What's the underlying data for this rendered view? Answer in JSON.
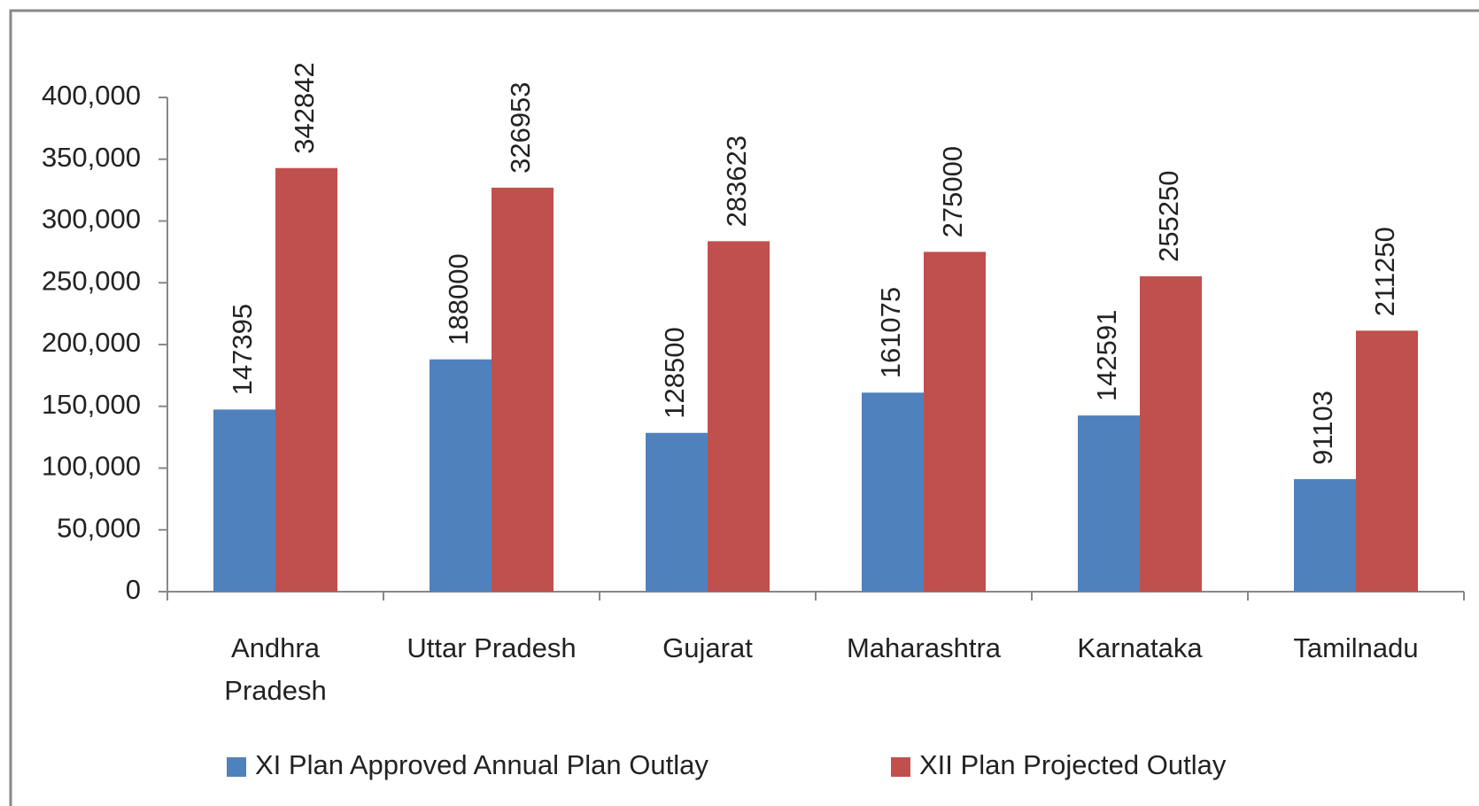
{
  "chart_data": {
    "type": "bar",
    "categories": [
      "Andhra Pradesh",
      "Uttar Pradesh",
      "Gujarat",
      "Maharashtra",
      "Karnataka",
      "Tamilnadu"
    ],
    "series": [
      {
        "name": "XI Plan Approved Annual Plan Outlay",
        "color": "#4f81bd",
        "values": [
          147395,
          188000,
          128500,
          161075,
          142591,
          91103
        ]
      },
      {
        "name": "XII Plan Projected Outlay",
        "color": "#c0504d",
        "values": [
          342842,
          326953,
          283623,
          275000,
          255250,
          211250
        ]
      }
    ],
    "ylim": [
      0,
      400000
    ],
    "yticks": [
      0,
      {
        "value": 50000,
        "label": "50,000"
      },
      {
        "value": 100000,
        "label": "100,000"
      },
      {
        "value": 150000,
        "label": "150,000"
      },
      {
        "value": 200000,
        "label": "200,000"
      },
      {
        "value": 250000,
        "label": "250,000"
      },
      {
        "value": 300000,
        "label": "300,000"
      },
      {
        "value": 350000,
        "label": "350,000"
      },
      {
        "value": 400000,
        "label": "400,000"
      }
    ],
    "grid": false,
    "legend": "bottom"
  }
}
